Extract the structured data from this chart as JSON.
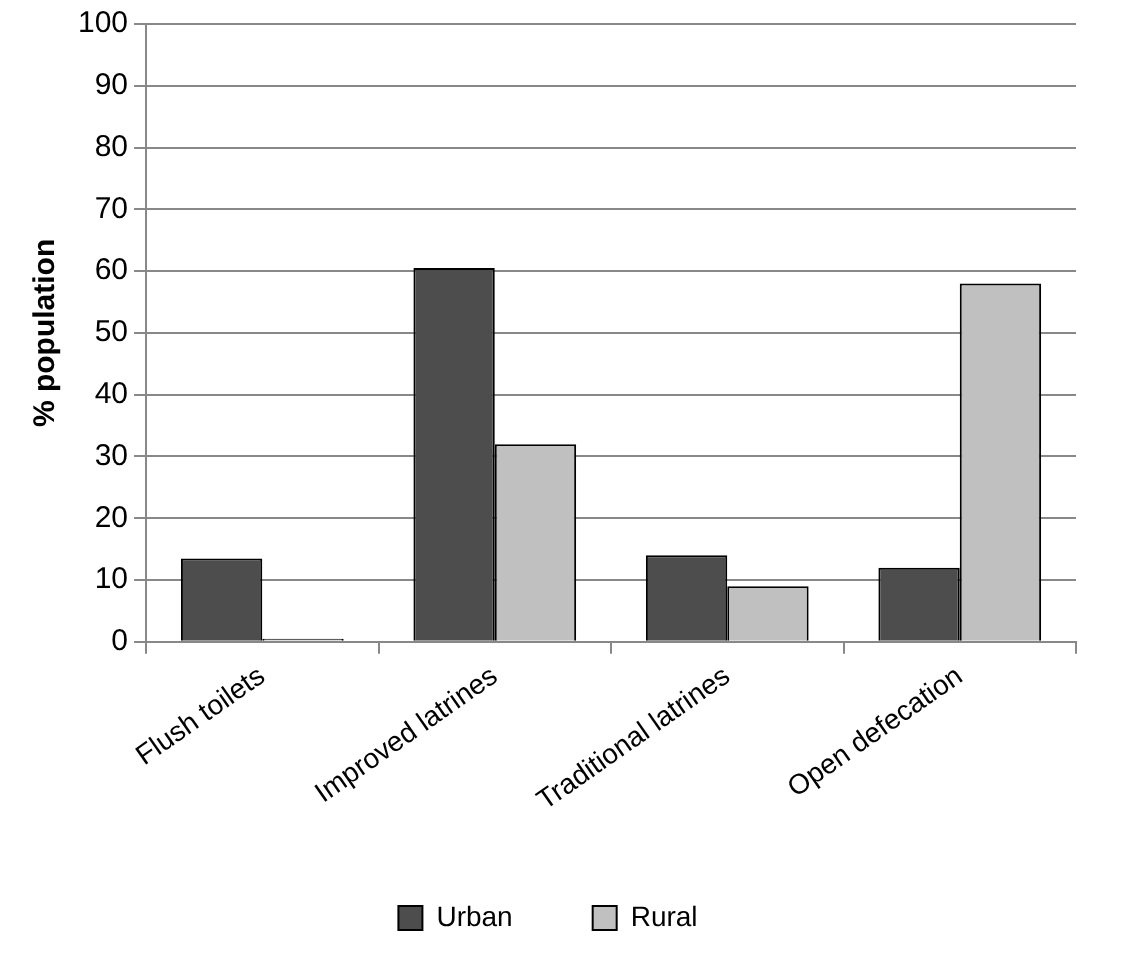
{
  "chart_data": {
    "type": "bar",
    "ylabel": "% population",
    "categories": [
      "Flush toilets",
      "Improved latrines",
      "Traditional latrines",
      "Open defecation"
    ],
    "series": [
      {
        "name": "Urban",
        "color": "#4d4d4d",
        "values": [
          13.5,
          60.5,
          14,
          12
        ]
      },
      {
        "name": "Rural",
        "color": "#c0c0c0",
        "values": [
          0.5,
          32,
          9,
          58
        ]
      }
    ],
    "ylim": [
      0,
      100
    ],
    "yticks": [
      0,
      10,
      20,
      30,
      40,
      50,
      60,
      70,
      80,
      90,
      100
    ],
    "grid": "y",
    "legend": "bottom"
  }
}
